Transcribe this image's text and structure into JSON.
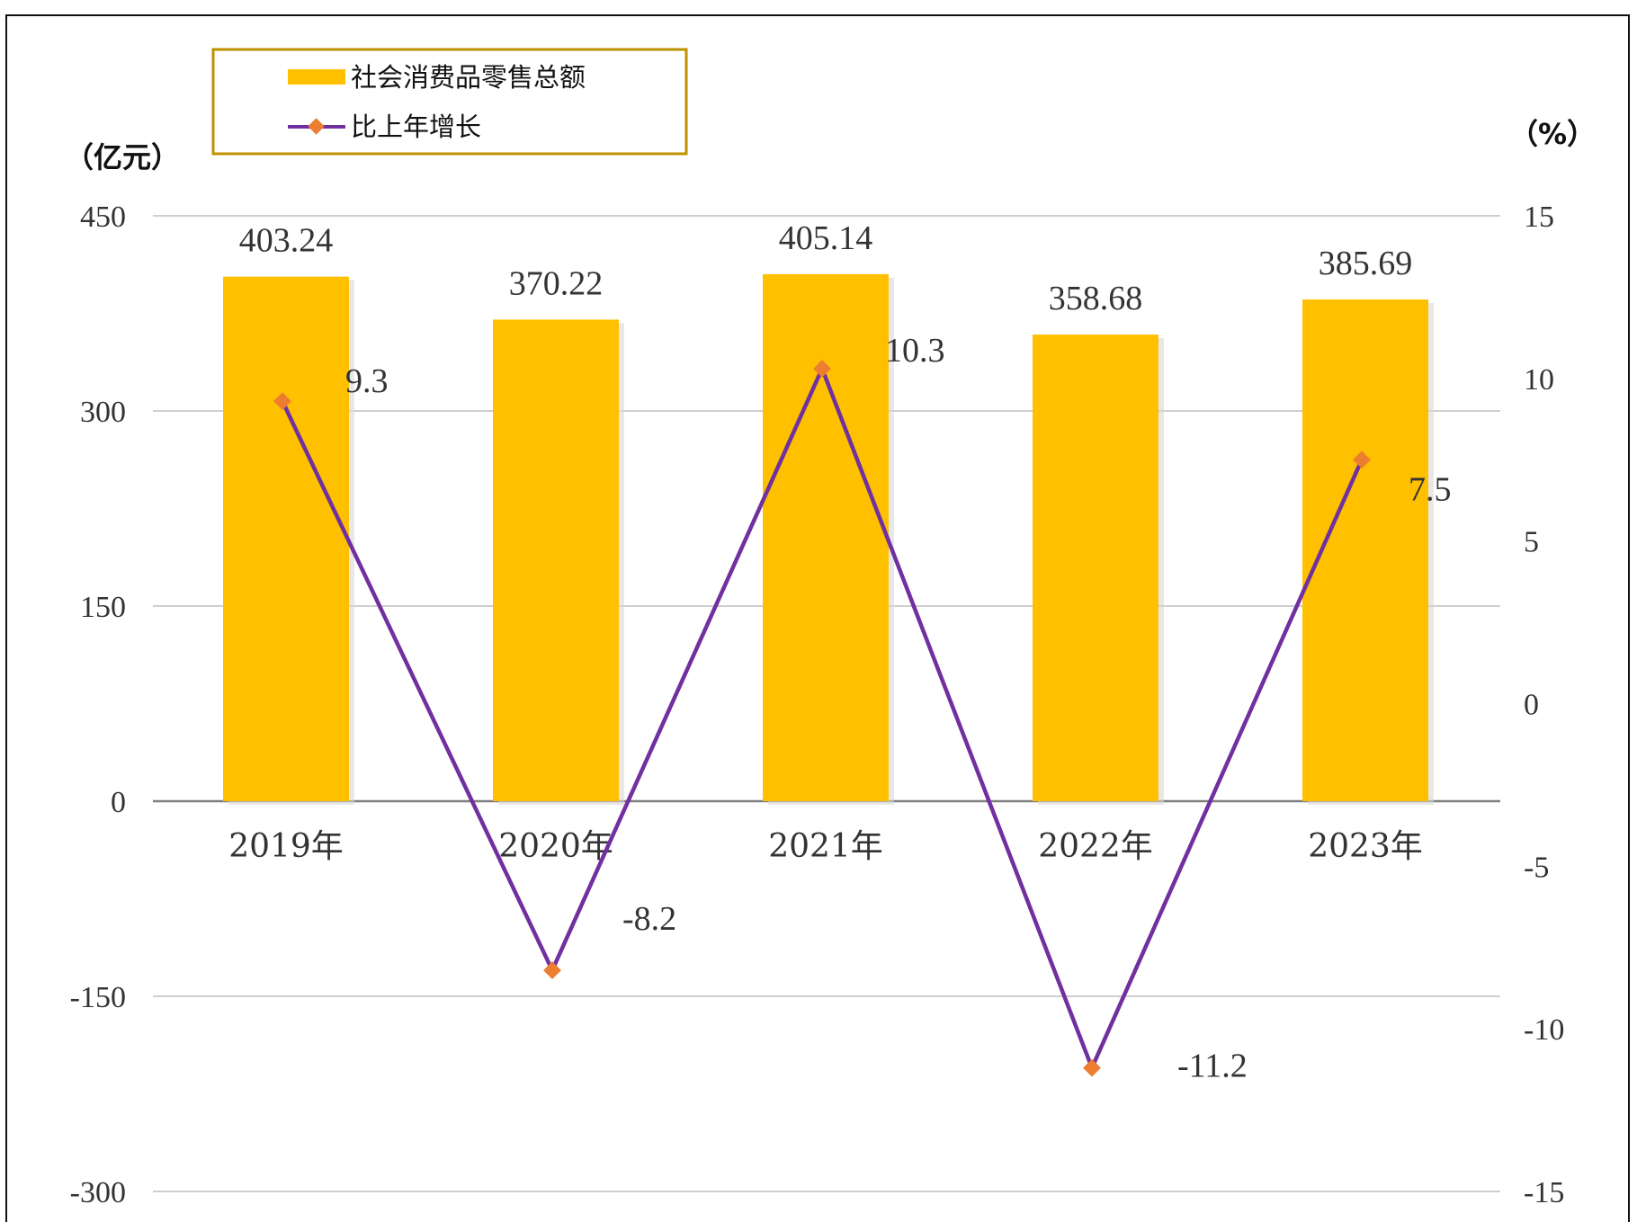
{
  "chart_data": {
    "type": "bar",
    "categories": [
      "2019年",
      "2020年",
      "2021年",
      "2022年",
      "2023年"
    ],
    "series": [
      {
        "name": "社会消费品零售总额",
        "type": "bar",
        "axis": "left",
        "values": [
          403.24,
          370.22,
          405.14,
          358.68,
          385.69
        ],
        "labels": [
          "403.24",
          "370.22",
          "405.14",
          "358.68",
          "385.69"
        ]
      },
      {
        "name": "比上年增长",
        "type": "line",
        "axis": "right",
        "values": [
          9.3,
          -8.2,
          10.3,
          -11.2,
          7.5
        ],
        "labels": [
          "9.3",
          "-8.2",
          "10.3",
          "-11.2",
          "7.5"
        ]
      }
    ],
    "y_left": {
      "unit": "（亿元）",
      "ylim": [
        -300,
        450
      ],
      "ticks": [
        -300,
        -150,
        0,
        150,
        300,
        450
      ]
    },
    "y_right": {
      "unit": "（%）",
      "ylim": [
        -15,
        15
      ],
      "ticks": [
        -15,
        -10,
        -5,
        0,
        5,
        10,
        15
      ]
    },
    "legend": "top-left",
    "grid": true,
    "colors": {
      "bar": "#FFC000",
      "line": "#7030A0",
      "marker": "#ED7D31",
      "grid": "#BFBFBF",
      "legend_border": "#BF9000"
    }
  }
}
